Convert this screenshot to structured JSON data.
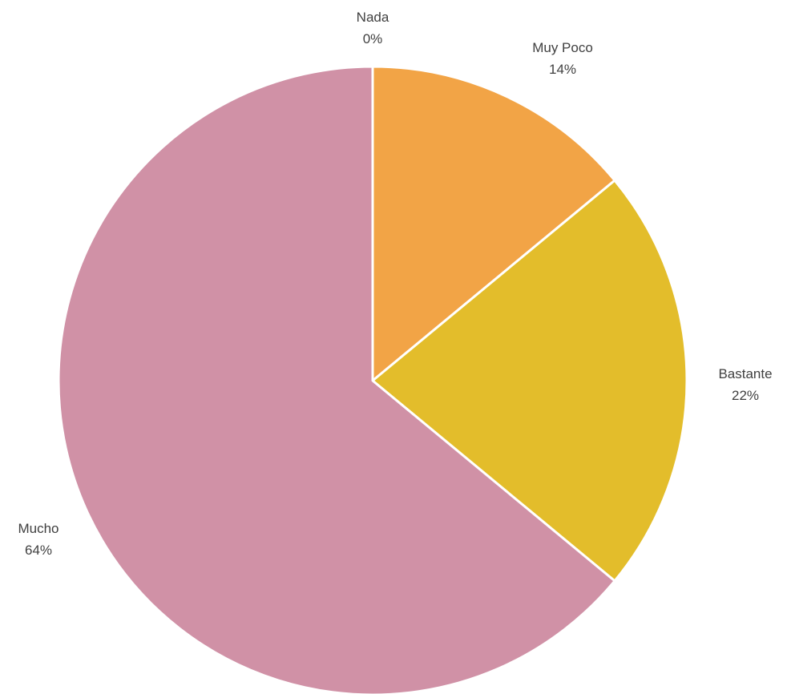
{
  "chart_data": {
    "type": "pie",
    "title": "",
    "categories": [
      "Nada",
      "Muy Poco",
      "Bastante",
      "Mucho"
    ],
    "values": [
      0,
      14,
      22,
      64
    ],
    "labels": [
      "0%",
      "14%",
      "22%",
      "64%"
    ],
    "colors": [
      "#4472c4",
      "#f2a446",
      "#e3bd2b",
      "#d091a6"
    ],
    "legend": "none",
    "start_angle_deg": 0,
    "direction": "clockwise"
  }
}
